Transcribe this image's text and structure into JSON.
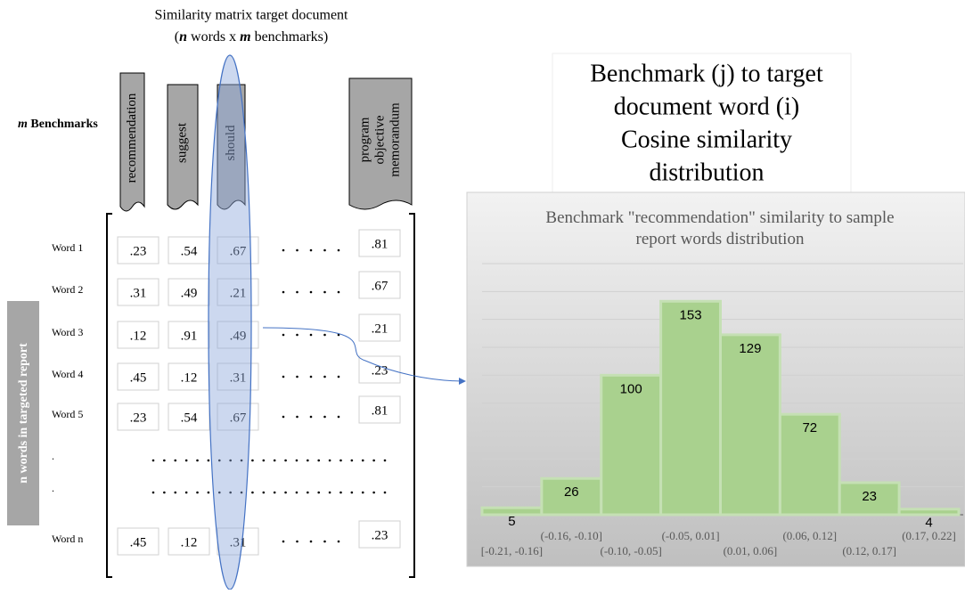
{
  "matrix": {
    "title": "Similarity matrix target document",
    "subtitle_parts": [
      "(",
      "n",
      " words x ",
      "m",
      " benchmarks)"
    ],
    "benchmark_label_parts": [
      "m",
      " Benchmarks"
    ],
    "rows_label": "n words in targeted report",
    "benchmarks": [
      "recommendation",
      "suggest",
      "should",
      "program objective memorandum"
    ],
    "rows": [
      {
        "label": "Word 1",
        "values": [
          ".23",
          ".54",
          ".67",
          ".81"
        ]
      },
      {
        "label": "Word 2",
        "values": [
          ".31",
          ".49",
          ".21",
          ".67"
        ]
      },
      {
        "label": "Word 3",
        "values": [
          ".12",
          ".91",
          ".49",
          ".21"
        ]
      },
      {
        "label": "Word 4",
        "values": [
          ".45",
          ".12",
          ".31",
          ".23"
        ]
      },
      {
        "label": "Word 5",
        "values": [
          ".23",
          ".54",
          ".67",
          ".81"
        ]
      },
      {
        "label": "."
      },
      {
        "label": "."
      },
      {
        "label": "Word n",
        "values": [
          ".45",
          ".12",
          ".31",
          ".23"
        ]
      }
    ]
  },
  "caption": {
    "lines": [
      "Benchmark (j) to target",
      "document word (i)",
      "Cosine similarity",
      "distribution"
    ]
  },
  "chart_data": {
    "type": "bar",
    "title": "Benchmark \"recommendation\" similarity to sample report words distribution",
    "categories": [
      "[-0.21, -0.16]",
      "(-0.16, -0.10]",
      "(-0.10, -0.05]",
      "(-0.05, 0.01]",
      "(0.01, 0.06]",
      "(0.06, 0.12]",
      "(0.12, 0.17]",
      "(0.17, 0.22]"
    ],
    "values": [
      5,
      26,
      100,
      153,
      129,
      72,
      23,
      4
    ],
    "color": "#a9d18e",
    "ylim": [
      0,
      180
    ],
    "yticks": [
      0,
      20,
      40,
      60,
      80,
      100,
      120,
      140,
      160,
      180
    ],
    "grid": true
  }
}
